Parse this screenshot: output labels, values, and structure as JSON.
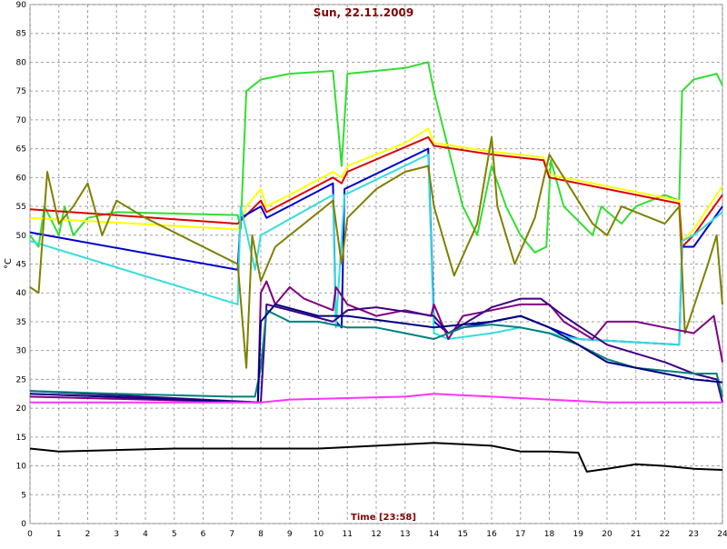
{
  "chart_data": {
    "type": "line",
    "title": "Sun, 22.11.2009",
    "x_label": "Time [23:58]",
    "y_label": "°C",
    "xlim": [
      0,
      24
    ],
    "ylim": [
      0,
      90
    ],
    "xticks": [
      0,
      1,
      2,
      3,
      4,
      5,
      6,
      7,
      8,
      9,
      10,
      11,
      12,
      13,
      14,
      15,
      16,
      17,
      18,
      19,
      20,
      21,
      22,
      23,
      24
    ],
    "yticks": [
      0,
      5,
      10,
      15,
      20,
      25,
      30,
      35,
      40,
      45,
      50,
      55,
      60,
      65,
      70,
      75,
      80,
      85,
      90
    ],
    "grid": true,
    "series": [
      {
        "color": "#33dd33",
        "x": [
          0,
          0.3,
          0.5,
          1,
          1.2,
          1.5,
          2,
          3,
          7.2,
          7.3,
          7.5,
          8,
          9,
          10.5,
          10.8,
          11,
          13,
          13.8,
          14,
          14.5,
          15,
          15.5,
          16,
          16.5,
          17,
          17.5,
          17.9,
          18.05,
          18.5,
          19.5,
          19.8,
          20.5,
          21,
          22,
          22.5,
          22.6,
          23,
          23.8,
          24
        ],
        "values": [
          50,
          48,
          55,
          50,
          55,
          50,
          53,
          54,
          53.5,
          51,
          75,
          77,
          78,
          78.5,
          62,
          78,
          79,
          80,
          75,
          65,
          55,
          50,
          62,
          55,
          50,
          47,
          48,
          63,
          55,
          50,
          55,
          52,
          55,
          57,
          56,
          75,
          77,
          78,
          76
        ]
      },
      {
        "color": "#ffff00",
        "x": [
          0,
          7.2,
          7.5,
          8,
          8.2,
          9,
          10.5,
          10.8,
          11,
          13,
          13.8,
          14,
          16,
          17.8,
          18,
          22.5,
          22.6,
          23,
          24
        ],
        "values": [
          53,
          51,
          55,
          58,
          55,
          57,
          61,
          60,
          62,
          66,
          68.5,
          66,
          64.5,
          63.5,
          60.5,
          56,
          49,
          51,
          58.5
        ]
      },
      {
        "color": "#dd0000",
        "x": [
          0,
          7.2,
          8,
          8.2,
          10.5,
          10.8,
          11,
          13.8,
          14,
          16,
          17.8,
          18,
          22.5,
          22.6,
          23,
          24
        ],
        "values": [
          54.5,
          52,
          56,
          54,
          60,
          59,
          61,
          67,
          65.5,
          64,
          63,
          60,
          55.5,
          48,
          50,
          57
        ]
      },
      {
        "color": "#0000cc",
        "x": [
          0,
          7.2,
          7.3,
          8,
          8.2,
          10.5,
          10.6,
          10.8,
          10.9,
          13.8,
          14,
          14.5,
          15,
          16,
          17,
          18,
          19,
          22.5,
          22.6,
          23,
          24
        ],
        "values": [
          50.5,
          44,
          53,
          55,
          53,
          59,
          35,
          34,
          58,
          65,
          35,
          33,
          34,
          35,
          36,
          34,
          32,
          31,
          48,
          48,
          55
        ]
      },
      {
        "color": "#33dddd",
        "x": [
          0,
          7.2,
          7.3,
          7.8,
          8,
          10.5,
          10.6,
          10.9,
          13.8,
          14,
          14.5,
          16,
          17,
          18,
          19,
          22.5,
          22.6,
          23,
          24
        ],
        "values": [
          49,
          38,
          55,
          44,
          50,
          57,
          34,
          57,
          64,
          33,
          32,
          33,
          34,
          33,
          32,
          31,
          49,
          50,
          54
        ]
      },
      {
        "color": "#808000",
        "x": [
          0,
          0.3,
          0.6,
          1,
          1.5,
          2,
          2.5,
          3,
          4,
          7.2,
          7.5,
          7.7,
          8,
          8.5,
          10.5,
          10.8,
          11,
          12,
          13,
          13.8,
          14,
          14.7,
          15.5,
          16,
          16.2,
          16.8,
          17.5,
          18,
          18.5,
          19.5,
          20,
          20.5,
          21.5,
          22,
          22.5,
          22.7,
          23.5,
          23.8,
          24
        ],
        "values": [
          41,
          40,
          61,
          52,
          55,
          59,
          50,
          56,
          53,
          45,
          27,
          50,
          42,
          48,
          56,
          45,
          53,
          58,
          61,
          62,
          55,
          43,
          52,
          67,
          55,
          45,
          53,
          64,
          60,
          52,
          50,
          55,
          53,
          52,
          55,
          33,
          45,
          50,
          38
        ]
      },
      {
        "color": "#800080",
        "x": [
          0,
          7.9,
          8,
          8.2,
          8.5,
          9,
          9.5,
          10.5,
          10.6,
          11,
          12,
          13,
          13.9,
          14,
          14.5,
          15,
          16,
          17,
          18,
          18.5,
          19.5,
          20,
          21,
          22,
          23,
          23.7,
          24
        ],
        "values": [
          22,
          21,
          40,
          42,
          38,
          41,
          39,
          37,
          41,
          38,
          36,
          37,
          36,
          38,
          32,
          36,
          37,
          38,
          38,
          35,
          32,
          35,
          35,
          34,
          33,
          36,
          28
        ]
      },
      {
        "color": "#400080",
        "x": [
          0,
          8,
          8.2,
          9,
          10.5,
          11,
          12,
          14,
          14.5,
          16,
          17,
          17.7,
          18.5,
          20,
          22,
          23,
          23.8,
          24
        ],
        "values": [
          23,
          21,
          38,
          37,
          35,
          37,
          37.5,
          36,
          33,
          37.5,
          39,
          39,
          36,
          31,
          28,
          26,
          25,
          21
        ]
      },
      {
        "color": "#008080",
        "x": [
          0,
          3,
          7,
          7.8,
          8,
          8.2,
          9,
          10,
          11,
          12,
          13,
          14,
          15,
          16,
          17,
          18,
          19,
          20,
          21,
          22,
          23,
          23.8,
          24
        ],
        "values": [
          23,
          22.5,
          22,
          22,
          27,
          37,
          35,
          35,
          34,
          34,
          33,
          32,
          34,
          34.5,
          34,
          33,
          31,
          28.5,
          27,
          26.5,
          26,
          26,
          22
        ]
      },
      {
        "color": "#000080",
        "x": [
          0,
          7.9,
          8,
          8.5,
          10,
          11,
          14,
          15,
          16,
          17,
          18,
          19,
          20,
          22,
          23,
          24
        ],
        "values": [
          22.5,
          21,
          35,
          38,
          36,
          36,
          34,
          34.5,
          35,
          36,
          34,
          31,
          28,
          26,
          25,
          24.5
        ]
      },
      {
        "color": "#ff33ff",
        "x": [
          0,
          8,
          9,
          13,
          14,
          16,
          18,
          20,
          24
        ],
        "values": [
          21,
          21,
          21.5,
          22,
          22.5,
          22,
          21.5,
          21,
          21
        ]
      },
      {
        "color": "#000000",
        "x": [
          0,
          1,
          5,
          8,
          10,
          12,
          14,
          16,
          17,
          18,
          19,
          19.3,
          20,
          21,
          22,
          23,
          24
        ],
        "values": [
          13,
          12.5,
          13,
          13,
          13,
          13.5,
          14,
          13.5,
          12.5,
          12.5,
          12.3,
          9,
          9.5,
          10.3,
          10,
          9.5,
          9.3
        ]
      }
    ]
  }
}
